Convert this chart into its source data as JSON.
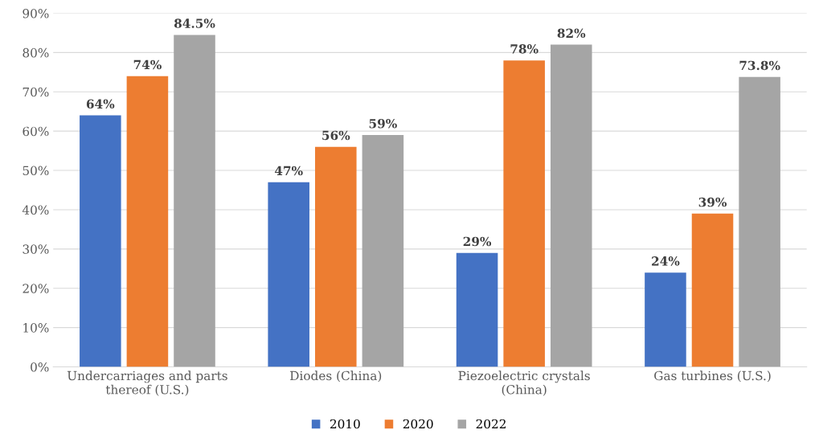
{
  "chart_data": {
    "type": "bar",
    "categories": [
      "Undercarriages and parts\nthereof (U.S.)",
      "Diodes (China)",
      "Piezoelectric crystals\n(China)",
      "Gas turbines (U.S.)"
    ],
    "series": [
      {
        "name": "2010",
        "color": "#4472c4",
        "values": [
          64,
          47,
          29,
          24
        ],
        "value_labels": [
          "64%",
          "47%",
          "29%",
          "24%"
        ]
      },
      {
        "name": "2020",
        "color": "#ed7d31",
        "values": [
          74,
          56,
          78,
          39
        ],
        "value_labels": [
          "74%",
          "56%",
          "78%",
          "39%"
        ]
      },
      {
        "name": "2022",
        "color": "#a5a5a5",
        "values": [
          84.5,
          59,
          82,
          73.8
        ],
        "value_labels": [
          "84.5%",
          "59%",
          "82%",
          "73.8%"
        ]
      }
    ],
    "ylim": [
      0,
      90
    ],
    "yticks": [
      {
        "value": 0,
        "label": "0%"
      },
      {
        "value": 10,
        "label": "10%"
      },
      {
        "value": 20,
        "label": "20%"
      },
      {
        "value": 30,
        "label": "30%"
      },
      {
        "value": 40,
        "label": "40%"
      },
      {
        "value": 50,
        "label": "50%"
      },
      {
        "value": 60,
        "label": "60%"
      },
      {
        "value": 70,
        "label": "70%"
      },
      {
        "value": 80,
        "label": "80%"
      },
      {
        "value": 90,
        "label": "90%"
      }
    ],
    "grid": "y",
    "legend": "bottom"
  }
}
